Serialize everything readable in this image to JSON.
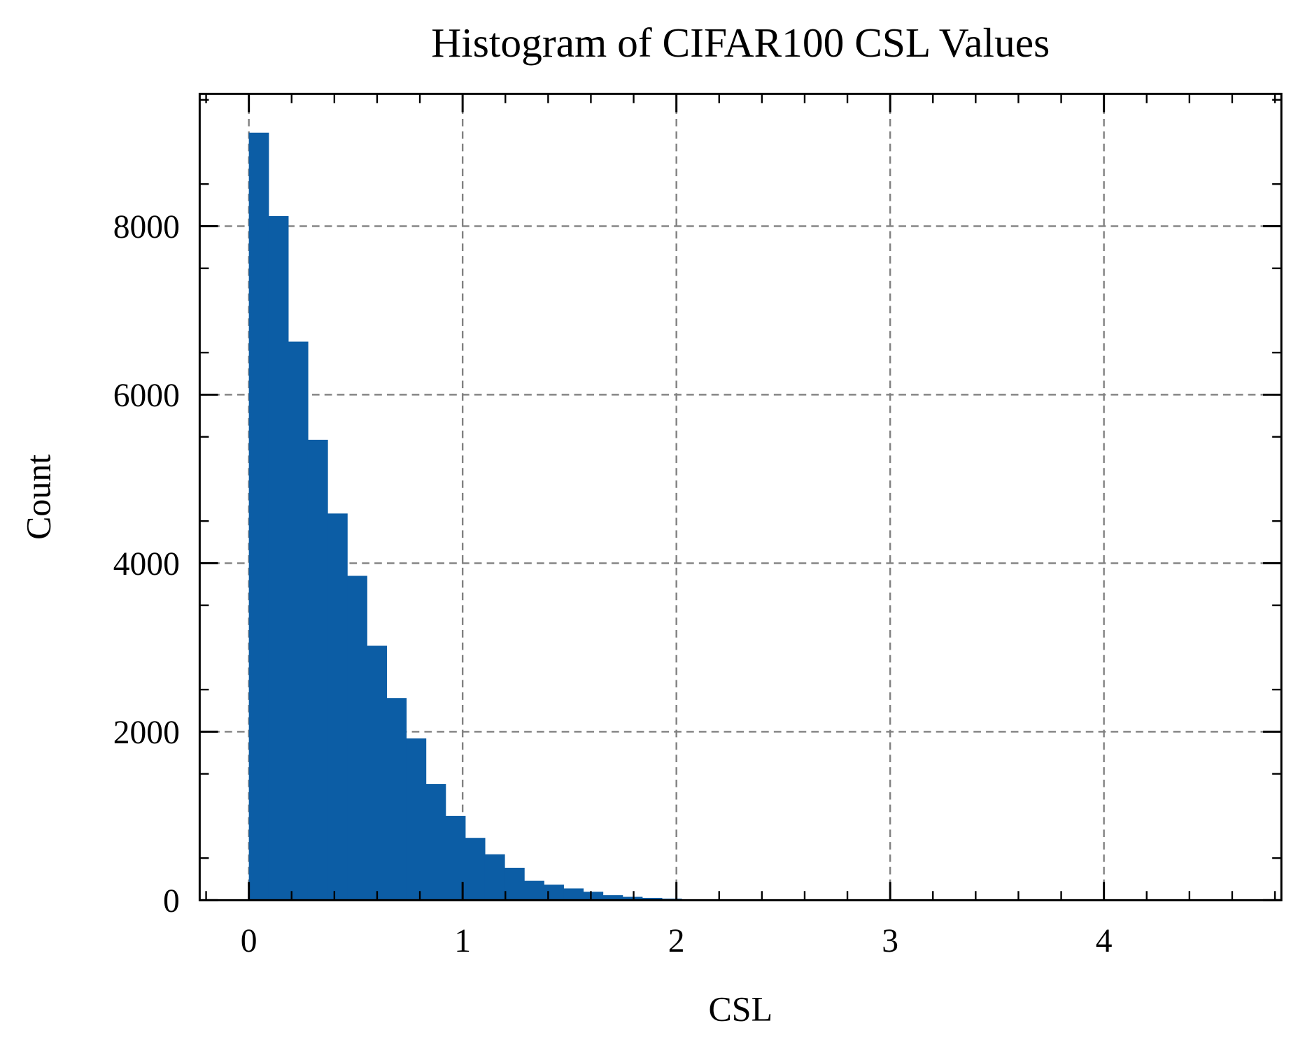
{
  "chart_data": {
    "type": "bar",
    "subtype": "histogram",
    "title": "Histogram of CIFAR100 CSL Values",
    "xlabel": "CSL",
    "ylabel": "Count",
    "xlim": [
      -0.23,
      4.83
    ],
    "ylim": [
      0,
      9570
    ],
    "xticks": [
      0,
      1,
      2,
      3,
      4
    ],
    "xtick_labels": [
      "0",
      "1",
      "2",
      "3",
      "4"
    ],
    "yticks": [
      0,
      2000,
      4000,
      6000,
      8000
    ],
    "ytick_labels": [
      "0",
      "2000",
      "4000",
      "6000",
      "8000"
    ],
    "grid": true,
    "bar_color": "#0C5DA5",
    "grid_color": "#808080",
    "bin_start": 0,
    "bin_width": 0.092,
    "values": [
      9110,
      8120,
      6630,
      5465,
      4590,
      3850,
      3020,
      2400,
      1920,
      1380,
      1000,
      740,
      545,
      385,
      230,
      185,
      140,
      100,
      60,
      40,
      28,
      18,
      10,
      6,
      3,
      2,
      1,
      1,
      0,
      0,
      0,
      0,
      0,
      0,
      0,
      0,
      0,
      0,
      0,
      0,
      0,
      0,
      0,
      0,
      0,
      0,
      0,
      0,
      0,
      1
    ]
  }
}
